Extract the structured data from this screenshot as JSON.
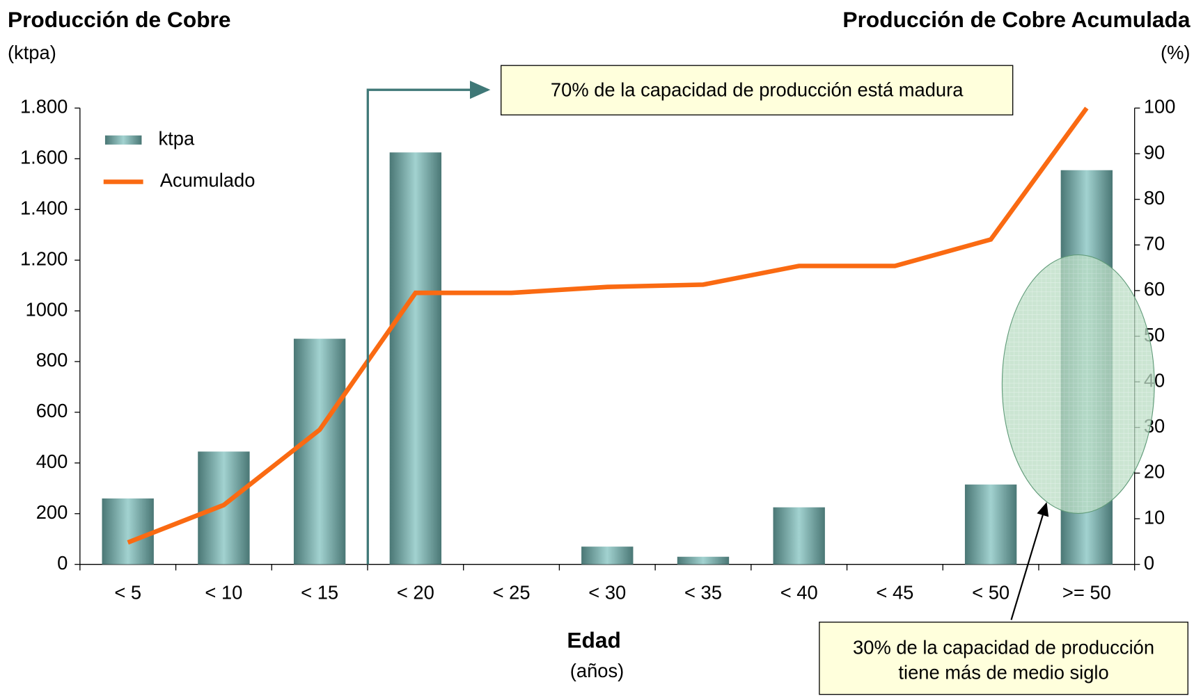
{
  "chart_data": {
    "type": "bar",
    "y_title": "Producción de Cobre",
    "y_unit": "(ktpa)",
    "y2_title": "Producción de Cobre Acumulada",
    "y2_unit": "(%)",
    "x_title": "Edad",
    "x_unit": "(años)",
    "categories": [
      "< 5",
      "< 10",
      "< 15",
      "< 20",
      "< 25",
      "< 30",
      "< 35",
      "< 40",
      "< 45",
      "< 50",
      ">= 50"
    ],
    "series": [
      {
        "name": "ktpa",
        "type": "bar",
        "color": "#5f9896",
        "values": [
          260,
          445,
          890,
          1625,
          0,
          70,
          30,
          225,
          0,
          315,
          1555
        ]
      },
      {
        "name": "Acumulado",
        "type": "line",
        "axis": "y2",
        "color": "#fa6a12",
        "values": [
          4.8,
          13,
          29.5,
          59.5,
          59.5,
          60.8,
          61.3,
          65.4,
          65.4,
          71.2,
          100
        ]
      }
    ],
    "ylim": [
      0,
      1800
    ],
    "yticks": [
      0,
      200,
      400,
      600,
      800,
      1000,
      {
        "value": 1200,
        "label": "1.200"
      },
      {
        "value": 1400,
        "label": "1.400"
      },
      {
        "value": 1600,
        "label": "1.600"
      },
      {
        "value": 1800,
        "label": "1.800"
      }
    ],
    "y2lim": [
      0,
      100
    ],
    "y2ticks": [
      0,
      10,
      20,
      30,
      40,
      50,
      60,
      70,
      80,
      90,
      100
    ],
    "legend": "upper left",
    "annotations": [
      {
        "lines": [
          "70% de la capacidad de producción está madura"
        ]
      },
      {
        "lines": [
          "30% de la capacidad de producción",
          "tiene más de medio siglo"
        ]
      }
    ]
  }
}
